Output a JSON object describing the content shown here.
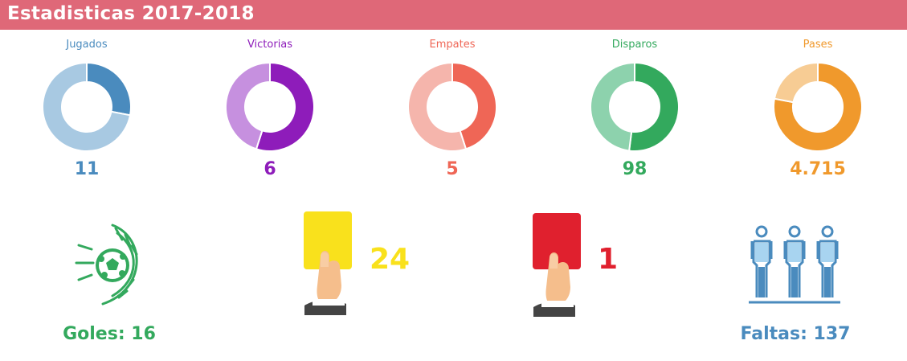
{
  "header": {
    "title": "Estadisticas 2017-2018"
  },
  "colors": {
    "header_bg": "#DF6878",
    "jugados": "#4A8BBE",
    "jugados_light": "#A8C9E2",
    "victorias": "#8E1CBA",
    "victorias_light": "#C690DF",
    "empates": "#EF6656",
    "empates_light": "#F5B5AC",
    "disparos": "#33A95D",
    "disparos_light": "#8DD2AD",
    "pases": "#F0992C",
    "pases_light": "#F7CC94",
    "yellow": "#F9E11C",
    "red": "#E0202E",
    "goles": "#33A95D",
    "faltas": "#4A8BBE"
  },
  "chart_data": [
    {
      "type": "pie",
      "title": "Jugados",
      "value_label": "11",
      "slices": [
        0.28,
        0.72
      ]
    },
    {
      "type": "pie",
      "title": "Victorias",
      "value_label": "6",
      "slices": [
        0.55,
        0.45
      ]
    },
    {
      "type": "pie",
      "title": "Empates",
      "value_label": "5",
      "slices": [
        0.45,
        0.55
      ]
    },
    {
      "type": "pie",
      "title": "Disparos",
      "value_label": "98",
      "slices": [
        0.52,
        0.48
      ]
    },
    {
      "type": "pie",
      "title": "Pases",
      "value_label": "4.715",
      "slices": [
        0.78,
        0.22
      ]
    }
  ],
  "cards": {
    "yellow_count": "24",
    "red_count": "1"
  },
  "goles": {
    "label": "Goles: 16"
  },
  "faltas": {
    "label": "Faltas: 137"
  }
}
